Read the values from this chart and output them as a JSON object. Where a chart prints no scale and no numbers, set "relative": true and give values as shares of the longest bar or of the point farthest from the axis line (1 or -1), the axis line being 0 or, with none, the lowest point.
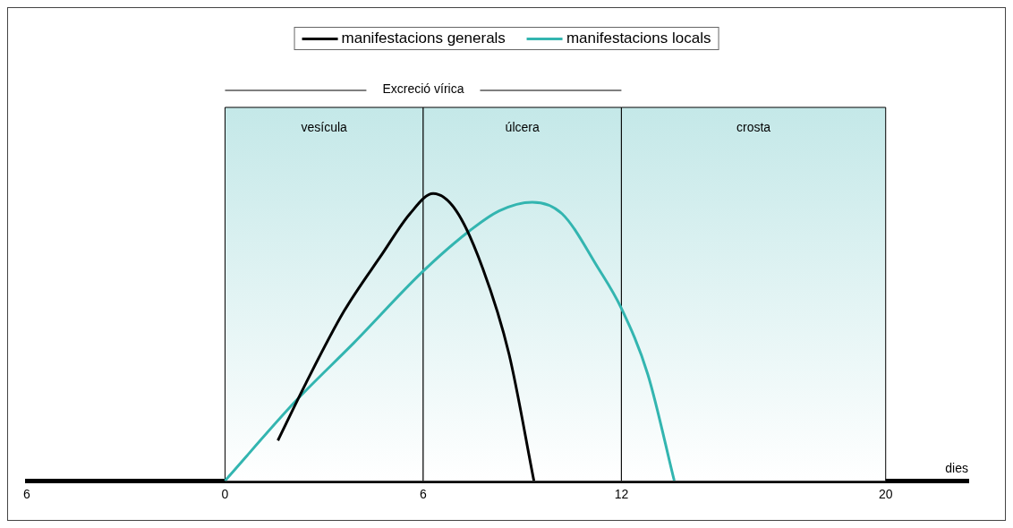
{
  "chart_data": {
    "type": "line",
    "relative": true,
    "xlabel": "dies",
    "legend": "top",
    "marker": "none",
    "grid": false,
    "tick_labels": "x",
    "xlim": [
      -6,
      22.5
    ],
    "xticks": [
      {
        "value": -6,
        "label": "6"
      },
      0,
      6,
      12,
      20
    ],
    "annotations": [
      "Excreció vírica"
    ],
    "bands": [
      {
        "axis": "x",
        "from": 0,
        "to": 6,
        "label": "vesícula",
        "color": "#c4e8e8"
      },
      {
        "axis": "x",
        "from": 6,
        "to": 12,
        "label": "úlcera",
        "color": "#c4e8e8"
      },
      {
        "axis": "x",
        "from": 12,
        "to": 20,
        "label": "crosta",
        "color": "#c4e8e8"
      }
    ],
    "series": [
      {
        "name": "manifestacions generals",
        "color": "#000000",
        "x": [
          1.6,
          2.45,
          3.6,
          4.76,
          5.6,
          6.3,
          7.0,
          7.8,
          8.6,
          9.35
        ],
        "values": [
          0.14,
          0.34,
          0.59,
          0.79,
          0.93,
          1.0,
          0.94,
          0.74,
          0.44,
          0
        ]
      },
      {
        "name": "manifestacions locals",
        "color": "#33b5b0",
        "x": [
          0,
          2.16,
          3.9,
          6,
          7.4,
          8.3,
          9.3,
          10.2,
          11.3,
          12,
          12.8,
          13.6
        ],
        "values": [
          0,
          0.28,
          0.48,
          0.73,
          0.87,
          0.94,
          0.97,
          0.93,
          0.74,
          0.6,
          0.37,
          0
        ]
      }
    ]
  }
}
